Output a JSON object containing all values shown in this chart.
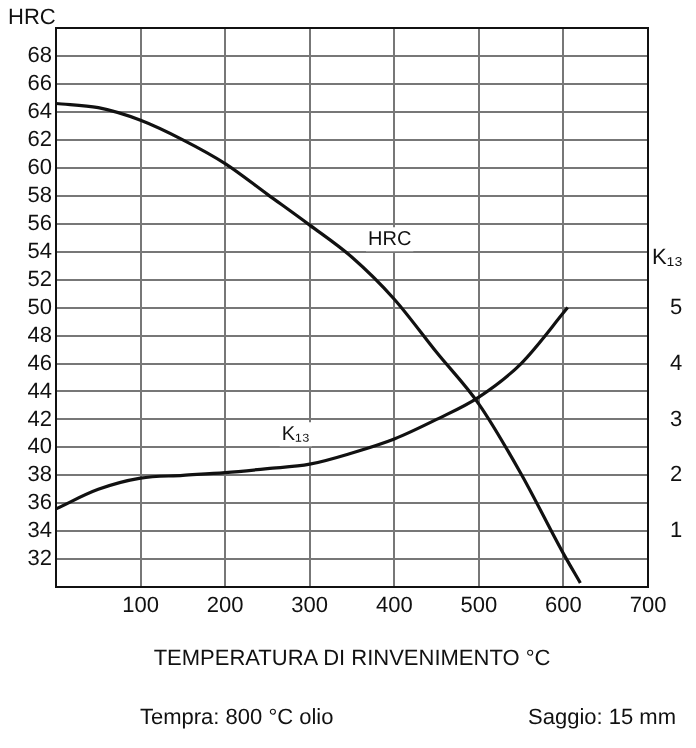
{
  "chart_data": {
    "type": "line",
    "xlabel": "TEMPERATURA DI RINVENIMENTO °C",
    "ylabel": "HRC",
    "y2label": "K₁₃",
    "x": [
      0,
      50,
      100,
      150,
      200,
      250,
      300,
      350,
      400,
      450,
      500,
      550,
      600,
      620
    ],
    "series": [
      {
        "name": "HRC",
        "color": "#111111",
        "values": [
          64.6,
          64.3,
          63.4,
          62,
          60.3,
          58.1,
          55.9,
          53.6,
          50.6,
          46.8,
          43.1,
          38.1,
          32.4,
          30.3
        ]
      },
      {
        "name": "K₁₃",
        "color": "#111111",
        "axis": "y2",
        "x": [
          0,
          50,
          100,
          150,
          200,
          250,
          300,
          350,
          400,
          450,
          500,
          550,
          605
        ],
        "values": [
          1.4,
          1.75,
          1.95,
          2,
          2.05,
          2.12,
          2.2,
          2.4,
          2.65,
          3,
          3.4,
          4,
          5
        ]
      }
    ],
    "xlim": [
      0,
      700
    ],
    "xticks": [
      100,
      200,
      300,
      400,
      500,
      600,
      700
    ],
    "ylim": [
      30,
      70
    ],
    "yticks": [
      32,
      34,
      36,
      38,
      40,
      42,
      44,
      46,
      48,
      50,
      52,
      54,
      56,
      58,
      60,
      62,
      64,
      66,
      68
    ],
    "y2lim": [
      0,
      10
    ],
    "y2ticks": [
      1,
      2,
      3,
      4,
      5
    ],
    "grid": true,
    "legend": false,
    "marker": "none",
    "line_style": "solid",
    "annotations": [
      "Tempra: 800 °C olio",
      "Saggio: 15 mm"
    ]
  }
}
